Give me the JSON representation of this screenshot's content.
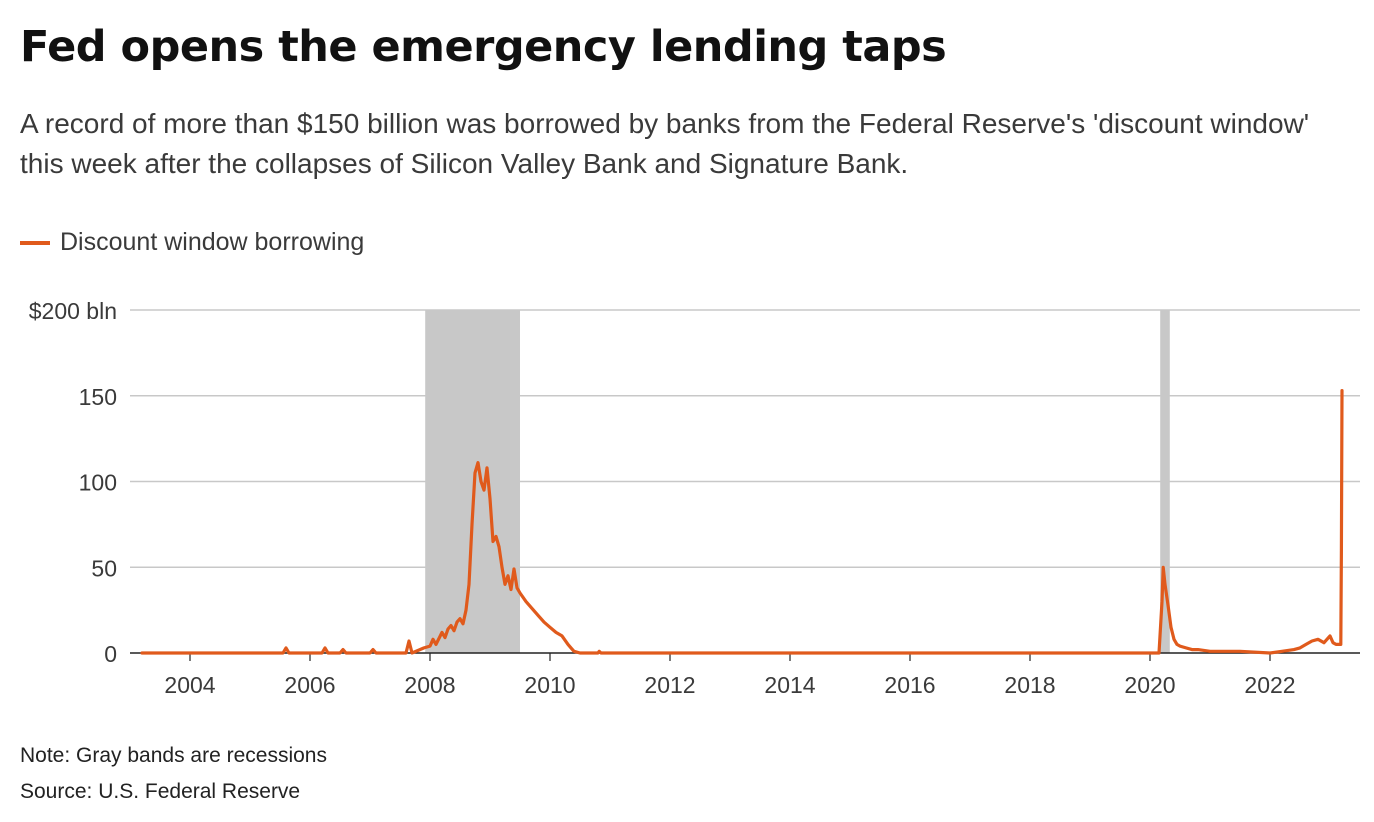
{
  "title": "Fed opens the emergency lending taps",
  "subtitle": "A record of more than $150 billion was borrowed by banks from the Federal Reserve's 'discount window' this week after the collapses of Silicon Valley Bank and Signature Bank.",
  "note": "Note: Gray bands are recessions",
  "source": "Source: U.S. Federal Reserve",
  "colors": {
    "line": "#e05a1c",
    "recession": "#c8c8c8",
    "grid": "#c8c8c8",
    "axis": "#222222",
    "text": "#3a3a3a"
  },
  "chart_data": {
    "type": "line",
    "title": "Fed opens the emergency lending taps",
    "xlabel": "",
    "ylabel": "$ billion",
    "xlim": [
      2003.0,
      2023.5
    ],
    "ylim": [
      0,
      200
    ],
    "x_ticks": [
      2004,
      2006,
      2008,
      2010,
      2012,
      2014,
      2016,
      2018,
      2020,
      2022
    ],
    "y_ticks": [
      {
        "value": 0,
        "label": "0"
      },
      {
        "value": 50,
        "label": "50"
      },
      {
        "value": 100,
        "label": "100"
      },
      {
        "value": 150,
        "label": "150"
      },
      {
        "value": 200,
        "label": "$200 bln"
      }
    ],
    "legend": [
      "Discount window borrowing"
    ],
    "recessions": [
      {
        "start": 2007.92,
        "end": 2009.5
      },
      {
        "start": 2020.17,
        "end": 2020.33
      }
    ],
    "series": [
      {
        "name": "Discount window borrowing",
        "x": [
          2003.2,
          2005.55,
          2005.6,
          2005.65,
          2006.2,
          2006.25,
          2006.3,
          2006.5,
          2006.55,
          2006.6,
          2007.0,
          2007.05,
          2007.1,
          2007.6,
          2007.65,
          2007.7,
          2007.9,
          2008.0,
          2008.05,
          2008.1,
          2008.2,
          2008.25,
          2008.3,
          2008.35,
          2008.4,
          2008.45,
          2008.5,
          2008.55,
          2008.6,
          2008.65,
          2008.7,
          2008.75,
          2008.8,
          2008.85,
          2008.9,
          2008.95,
          2009.0,
          2009.05,
          2009.1,
          2009.15,
          2009.2,
          2009.25,
          2009.3,
          2009.35,
          2009.4,
          2009.45,
          2009.5,
          2009.6,
          2009.7,
          2009.8,
          2009.9,
          2010.0,
          2010.1,
          2010.2,
          2010.3,
          2010.35,
          2010.4,
          2010.5,
          2010.8,
          2010.82,
          2010.85,
          2011.0,
          2020.15,
          2020.2,
          2020.22,
          2020.25,
          2020.3,
          2020.35,
          2020.4,
          2020.45,
          2020.5,
          2020.6,
          2020.7,
          2020.8,
          2021.0,
          2021.2,
          2021.5,
          2022.0,
          2022.2,
          2022.4,
          2022.5,
          2022.6,
          2022.7,
          2022.8,
          2022.9,
          2023.0,
          2023.05,
          2023.1,
          2023.15,
          2023.18,
          2023.19,
          2023.2
        ],
        "y": [
          0,
          0,
          3,
          0,
          0,
          3,
          0,
          0,
          2,
          0,
          0,
          2,
          0,
          0,
          7,
          0,
          3,
          4,
          8,
          5,
          12,
          9,
          14,
          16,
          13,
          18,
          20,
          17,
          25,
          40,
          75,
          105,
          111,
          100,
          95,
          108,
          90,
          65,
          68,
          62,
          50,
          40,
          45,
          37,
          49,
          38,
          35,
          30,
          26,
          22,
          18,
          15,
          12,
          10,
          5,
          3,
          1,
          0,
          0,
          1,
          0,
          0,
          0,
          30,
          50,
          40,
          28,
          15,
          8,
          5,
          4,
          3,
          2,
          2,
          1,
          1,
          1,
          0,
          1,
          2,
          3,
          5,
          7,
          8,
          6,
          10,
          6,
          5,
          5,
          5,
          60,
          153
        ]
      }
    ]
  }
}
